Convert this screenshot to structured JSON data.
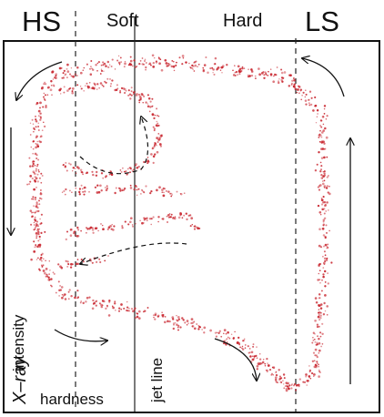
{
  "labels": {
    "hard_state": "HS",
    "soft": "Soft",
    "hard": "Hard",
    "low_state": "LS",
    "xray": "X–ray",
    "intensity": "intensity",
    "hardness": "hardness",
    "jet_line": "jet line"
  },
  "colors": {
    "dots": "#c8232c",
    "ink": "#111111",
    "background": "#ffffff"
  }
}
